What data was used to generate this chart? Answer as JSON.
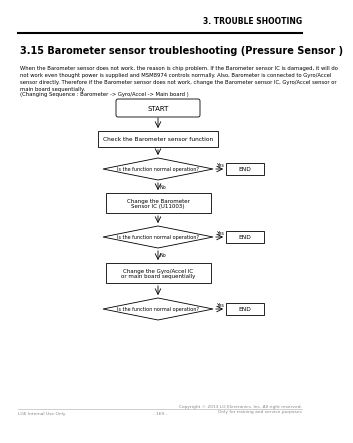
{
  "bg_color": "#ffffff",
  "header_text": "3. TROUBLE SHOOTING",
  "title": "3.15 Barometer sensor troubleshooting (Pressure Sensor )",
  "body_text": "When the Barometer sensor does not work, the reason is chip problem. If the Barometer sensor IC is damaged, it will do\nnot work even thought power is supplied and MSM8974 controls normally. Also, Barometer is connected to Gyro/Accel\nsensor directly. Therefore if the Barometer sensor does not work, change the Barometer sensor IC, Gyro/Accel sensor or\nmain board sequentially.",
  "sequence_text": "(Changing Sequence : Barometer -> Gyro/Accel -> Main board )",
  "footer_left": "LGE Internal Use Only",
  "footer_center": "- 169 -",
  "footer_right": "Copyright © 2013 LG Electronics. Inc. All right reserved.\nOnly for training and service purposes",
  "start_label": "START",
  "check_label": "Check the Barometer sensor function",
  "d1_label": "Is the function normal operation?",
  "end1_label": "END",
  "change1_label": "Change the Barometer\nSensor IC (U11003)",
  "d2_label": "Is the function normal operation?",
  "end2_label": "END",
  "change2_label": "Change the Gyro/Accel IC\nor main board sequentially",
  "d3_label": "Is the function normal operation?",
  "end3_label": "END",
  "yes_label": "Yes",
  "no_label": "No"
}
